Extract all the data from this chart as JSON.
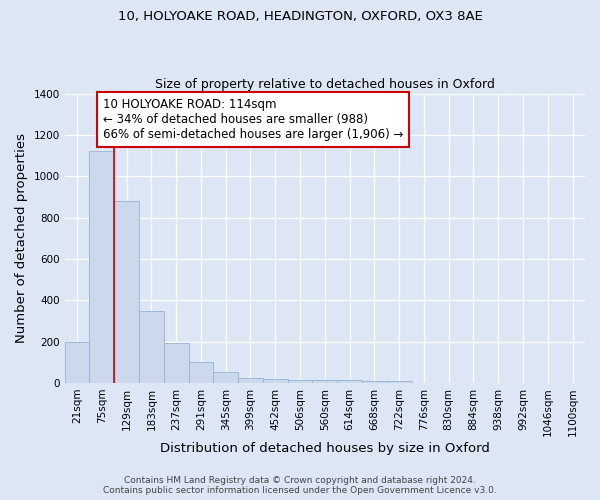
{
  "title_line1": "10, HOLYOAKE ROAD, HEADINGTON, OXFORD, OX3 8AE",
  "title_line2": "Size of property relative to detached houses in Oxford",
  "xlabel": "Distribution of detached houses by size in Oxford",
  "ylabel": "Number of detached properties",
  "categories": [
    "21sqm",
    "75sqm",
    "129sqm",
    "183sqm",
    "237sqm",
    "291sqm",
    "345sqm",
    "399sqm",
    "452sqm",
    "506sqm",
    "560sqm",
    "614sqm",
    "668sqm",
    "722sqm",
    "776sqm",
    "830sqm",
    "884sqm",
    "938sqm",
    "992sqm",
    "1046sqm",
    "1100sqm"
  ],
  "values": [
    200,
    1120,
    880,
    350,
    195,
    100,
    55,
    22,
    18,
    15,
    13,
    12,
    10,
    8,
    0,
    0,
    0,
    0,
    0,
    0,
    0
  ],
  "bar_color": "#ccd9ed",
  "bar_edge_color": "#92b4d4",
  "vline_x_idx": 2,
  "vline_color": "#cc0000",
  "annotation_text": "10 HOLYOAKE ROAD: 114sqm\n← 34% of detached houses are smaller (988)\n66% of semi-detached houses are larger (1,906) →",
  "annotation_box_color": "#ffffff",
  "annotation_box_edge": "#cc0000",
  "ylim": [
    0,
    1400
  ],
  "yticks": [
    0,
    200,
    400,
    600,
    800,
    1000,
    1200,
    1400
  ],
  "footer_line1": "Contains HM Land Registry data © Crown copyright and database right 2024.",
  "footer_line2": "Contains public sector information licensed under the Open Government Licence v3.0.",
  "bg_color": "#dce6f5",
  "plot_bg_color": "#dce6f5",
  "grid_color": "#ffffff",
  "title_fontsize": 9.5,
  "subtitle_fontsize": 9,
  "axis_label_fontsize": 9.5,
  "tick_fontsize": 7.5,
  "footer_fontsize": 6.5,
  "ann_fontsize": 8.5
}
